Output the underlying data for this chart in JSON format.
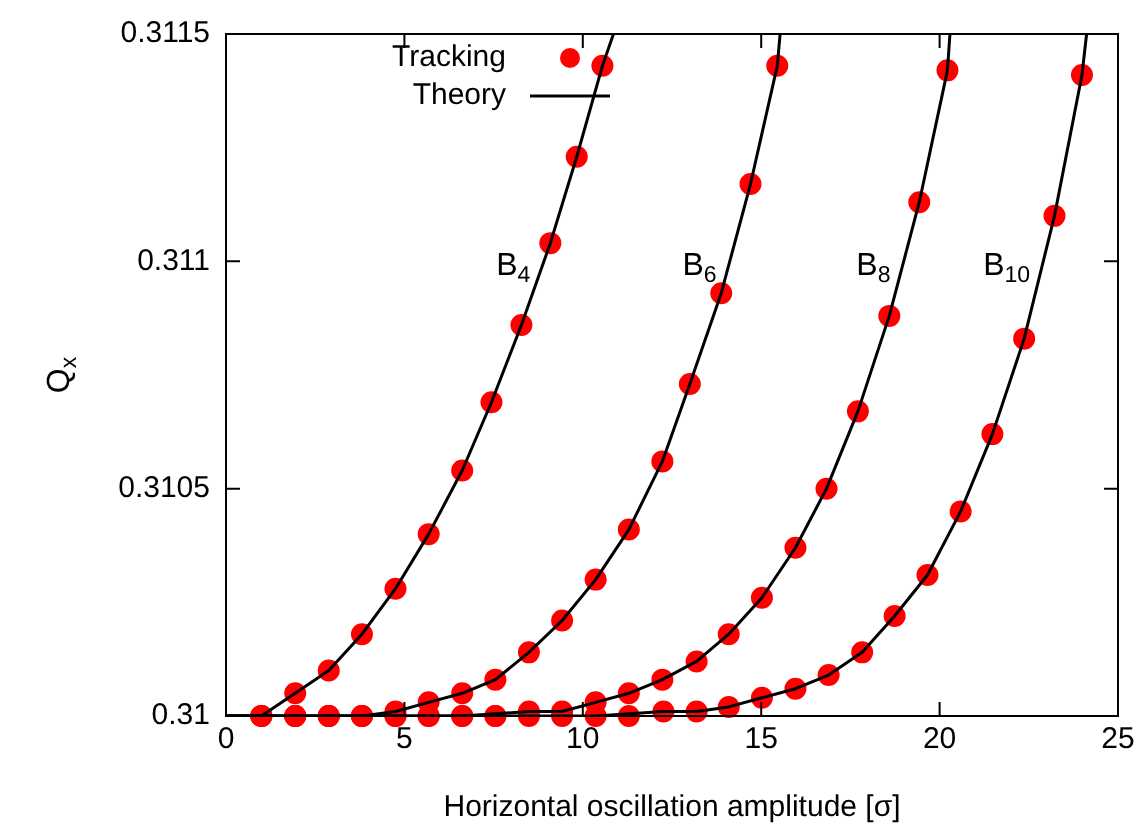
{
  "chart_data": {
    "type": "scatter",
    "xlabel": "Horizontal oscillation amplitude [σ]",
    "ylabel": "Q$_{x}$",
    "xlim": [
      0,
      25
    ],
    "xticks": [
      0,
      5,
      10,
      15,
      20,
      25
    ],
    "ylim": [
      0.31,
      0.3115
    ],
    "yticks": [
      0.31,
      0.3105,
      0.311,
      0.3115
    ],
    "grid": false,
    "legend": "top left",
    "marker": "circle",
    "series": [
      {
        "name": "Tracking",
        "color": "#ff0000",
        "x": [
          0.99,
          1.94,
          2.88,
          3.81,
          4.75,
          5.68,
          6.62,
          7.44,
          8.28,
          9.09,
          9.83,
          10.55,
          0.99,
          1.94,
          2.88,
          3.81,
          4.75,
          5.68,
          6.62,
          7.55,
          8.49,
          9.42,
          10.36,
          11.29,
          12.23,
          13.0,
          13.88,
          14.7,
          15.45,
          0.99,
          1.94,
          2.88,
          3.81,
          4.75,
          5.68,
          6.62,
          7.55,
          8.49,
          9.42,
          10.36,
          11.29,
          12.23,
          13.19,
          14.09,
          15.02,
          15.96,
          16.83,
          17.71,
          18.59,
          19.43,
          20.22,
          0.99,
          1.94,
          2.88,
          3.81,
          4.75,
          5.68,
          6.62,
          7.55,
          8.49,
          9.42,
          10.36,
          11.29,
          12.26,
          13.19,
          14.09,
          15.02,
          15.96,
          16.89,
          17.83,
          18.74,
          19.66,
          20.59,
          21.48,
          22.37,
          23.22,
          23.99
        ],
        "values": [
          0.31,
          0.31005,
          0.3101,
          0.31018,
          0.31028,
          0.3104,
          0.31054,
          0.31069,
          0.31086,
          0.31104,
          0.31123,
          0.31143,
          0.31,
          0.31,
          0.31,
          0.31,
          0.31001,
          0.31003,
          0.31005,
          0.31008,
          0.31014,
          0.31021,
          0.3103,
          0.31041,
          0.31056,
          0.31073,
          0.31093,
          0.31117,
          0.31143,
          0.31,
          0.31,
          0.31,
          0.31,
          0.31,
          0.31,
          0.31,
          0.31,
          0.31001,
          0.31001,
          0.31003,
          0.31005,
          0.31008,
          0.31012,
          0.31018,
          0.31026,
          0.31037,
          0.3105,
          0.31067,
          0.31088,
          0.31113,
          0.31142,
          0.31,
          0.31,
          0.31,
          0.31,
          0.31,
          0.31,
          0.31,
          0.31,
          0.31,
          0.31,
          0.31,
          0.31,
          0.31001,
          0.31001,
          0.31002,
          0.31004,
          0.31006,
          0.31009,
          0.31014,
          0.31022,
          0.31031,
          0.31045,
          0.31062,
          0.31083,
          0.3111,
          0.31141
        ]
      },
      {
        "name": "Theory",
        "type": "line",
        "color": "#000000",
        "line_style": "solid",
        "marker": "none",
        "x": [
          0,
          0.99,
          1.94,
          2.88,
          3.81,
          4.75,
          5.68,
          6.62,
          7.44,
          8.28,
          9.09,
          9.83,
          10.55,
          10.86
        ],
        "values": [
          0.31,
          0.31,
          0.31005,
          0.3101,
          0.31018,
          0.31028,
          0.3104,
          0.31054,
          0.31069,
          0.31086,
          0.31104,
          0.31123,
          0.31143,
          0.3115
        ]
      },
      {
        "type": "line",
        "color": "#000000",
        "line_style": "solid",
        "marker": "none",
        "x": [
          0,
          3.81,
          4.75,
          5.68,
          6.62,
          7.55,
          8.49,
          9.42,
          10.36,
          11.29,
          12.23,
          13.0,
          13.88,
          14.7,
          15.45,
          15.53
        ],
        "values": [
          0.31,
          0.31,
          0.31001,
          0.31003,
          0.31005,
          0.31008,
          0.31014,
          0.31021,
          0.3103,
          0.31041,
          0.31056,
          0.31073,
          0.31093,
          0.31117,
          0.31143,
          0.3115
        ]
      },
      {
        "type": "line",
        "color": "#000000",
        "line_style": "solid",
        "marker": "none",
        "x": [
          0,
          6.62,
          8.49,
          9.42,
          10.36,
          11.29,
          12.23,
          13.19,
          14.09,
          15.02,
          15.96,
          16.83,
          17.71,
          18.59,
          19.43,
          20.22,
          20.29
        ],
        "values": [
          0.31,
          0.31,
          0.31001,
          0.31001,
          0.31003,
          0.31005,
          0.31008,
          0.31012,
          0.31018,
          0.31026,
          0.31037,
          0.3105,
          0.31067,
          0.31088,
          0.31113,
          0.31142,
          0.3115
        ]
      },
      {
        "type": "line",
        "color": "#000000",
        "line_style": "solid",
        "marker": "none",
        "x": [
          0,
          10.36,
          12.26,
          13.19,
          14.09,
          15.02,
          15.96,
          16.89,
          17.83,
          18.74,
          19.66,
          20.59,
          21.48,
          22.37,
          23.22,
          23.99,
          24.12
        ],
        "values": [
          0.31,
          0.31,
          0.31001,
          0.31001,
          0.31002,
          0.31004,
          0.31006,
          0.31009,
          0.31014,
          0.31022,
          0.31031,
          0.31045,
          0.31062,
          0.31083,
          0.3111,
          0.31141,
          0.3115
        ]
      }
    ],
    "annotations": [
      "B$_{4}$",
      "B$_{6}$",
      "B$_{8}$",
      "B$_{10}$"
    ]
  }
}
